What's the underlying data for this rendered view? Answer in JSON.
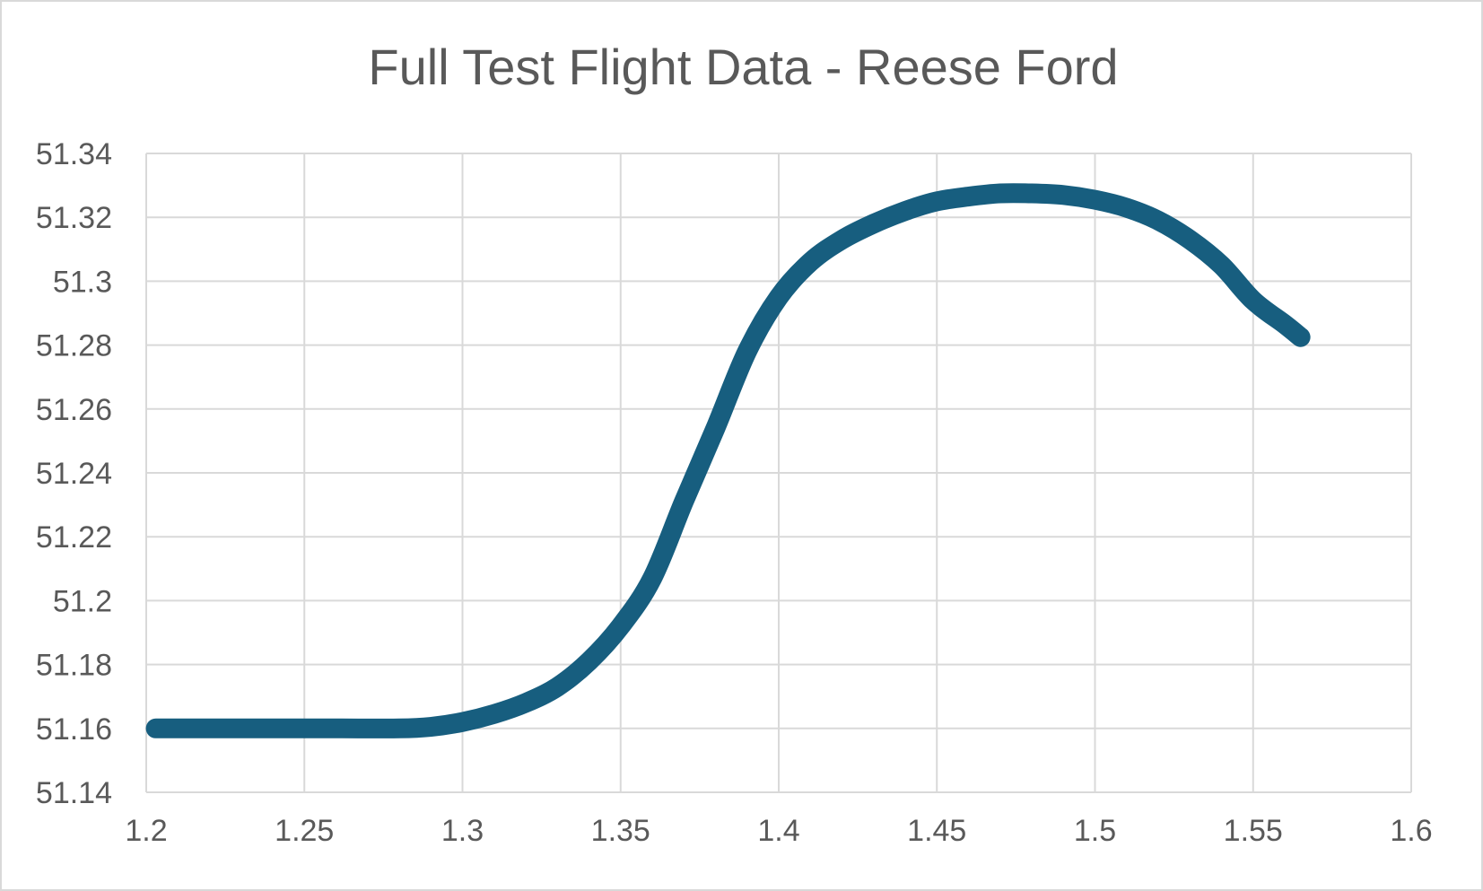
{
  "chart_data": {
    "type": "line",
    "title": "Full Test Flight Data - Reese Ford",
    "xlabel": "",
    "ylabel": "",
    "xlim": [
      1.2,
      1.6
    ],
    "ylim": [
      51.14,
      51.34
    ],
    "x_ticks": [
      "1.2",
      "1.25",
      "1.3",
      "1.35",
      "1.4",
      "1.45",
      "1.5",
      "1.55",
      "1.6"
    ],
    "y_ticks": [
      "51.14",
      "51.16",
      "51.18",
      "51.2",
      "51.22",
      "51.24",
      "51.26",
      "51.28",
      "51.3",
      "51.32",
      "51.34"
    ],
    "grid": true,
    "legend": "none",
    "line_color": "#175e7f",
    "series": [
      {
        "x": [
          1.203,
          1.22,
          1.24,
          1.26,
          1.28,
          1.29,
          1.3,
          1.31,
          1.32,
          1.33,
          1.34,
          1.35,
          1.36,
          1.37,
          1.38,
          1.39,
          1.4,
          1.41,
          1.42,
          1.43,
          1.44,
          1.45,
          1.46,
          1.47,
          1.48,
          1.49,
          1.5,
          1.51,
          1.52,
          1.53,
          1.54,
          1.55,
          1.56,
          1.565
        ],
        "y": [
          51.16,
          51.16,
          51.16,
          51.16,
          51.16,
          51.1605,
          51.162,
          51.1645,
          51.168,
          51.173,
          51.181,
          51.192,
          51.207,
          51.231,
          51.254,
          51.278,
          51.295,
          51.306,
          51.313,
          51.318,
          51.322,
          51.325,
          51.3265,
          51.3275,
          51.3275,
          51.327,
          51.3255,
          51.323,
          51.319,
          51.313,
          51.305,
          51.294,
          51.2865,
          51.2825
        ]
      }
    ]
  }
}
